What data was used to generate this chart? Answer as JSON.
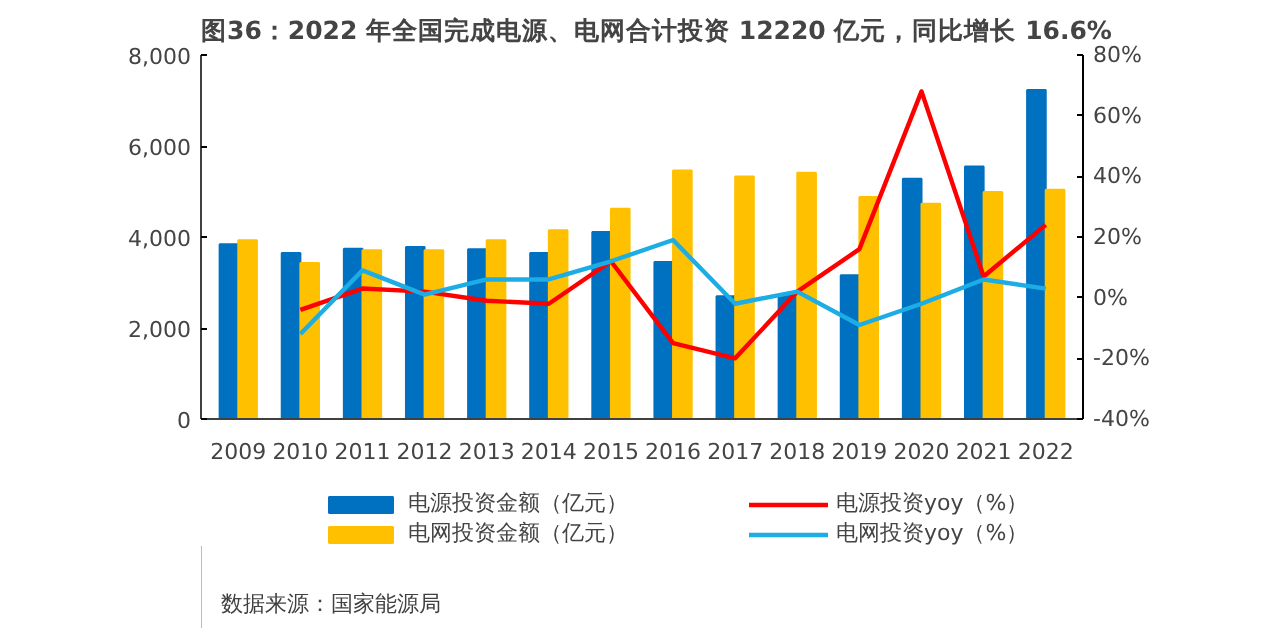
{
  "chart_data": {
    "type": "bar",
    "title": "图36：2022 年全国完成电源、电网合计投资 12220 亿元，同比增长 16.6%",
    "categories": [
      "2009",
      "2010",
      "2011",
      "2012",
      "2013",
      "2014",
      "2015",
      "2016",
      "2017",
      "2018",
      "2019",
      "2020",
      "2021",
      "2022"
    ],
    "series": [
      {
        "name": "电源投资金额（亿元）",
        "color": "#0070c0",
        "values": [
          3840,
          3650,
          3740,
          3780,
          3730,
          3650,
          4110,
          3450,
          2700,
          2720,
          3160,
          5280,
          5550,
          7230
        ]
      },
      {
        "name": "电网投资金额（亿元）",
        "color": "#ffc000",
        "values": [
          3930,
          3430,
          3710,
          3710,
          3930,
          4150,
          4620,
          5460,
          5330,
          5410,
          4880,
          4730,
          4990,
          5040
        ]
      },
      {
        "name": "电源投资yoy（%）",
        "type": "line",
        "axis": "y2",
        "color": "#ff0000",
        "values": [
          null,
          -4,
          3,
          2,
          -1,
          -2,
          12,
          -15,
          -20,
          2,
          16,
          68,
          7,
          24
        ]
      },
      {
        "name": "电网投资yoy（%）",
        "type": "line",
        "axis": "y2",
        "color": "#1cade4",
        "values": [
          null,
          -12,
          9,
          1,
          6,
          6,
          12,
          19,
          -2,
          2,
          -9,
          -2,
          6,
          3
        ]
      }
    ],
    "ylim": [
      0,
      8000
    ],
    "yticks": [
      0,
      {
        "value": 2000,
        "label": "2,000"
      },
      {
        "value": 4000,
        "label": "4,000"
      },
      {
        "value": 6000,
        "label": "6,000"
      },
      {
        "value": 8000,
        "label": "8,000"
      }
    ],
    "y2lim": [
      -40,
      80
    ],
    "y2ticks": [
      {
        "value": -40,
        "label": "-40%"
      },
      {
        "value": -20,
        "label": "-20%"
      },
      {
        "value": 0,
        "label": "0%"
      },
      {
        "value": 20,
        "label": "20%"
      },
      {
        "value": 40,
        "label": "40%"
      },
      {
        "value": 60,
        "label": "60%"
      },
      {
        "value": 80,
        "label": "80%"
      }
    ],
    "legend": "bottom",
    "annotations": [
      "数据来源：国家能源局"
    ]
  }
}
